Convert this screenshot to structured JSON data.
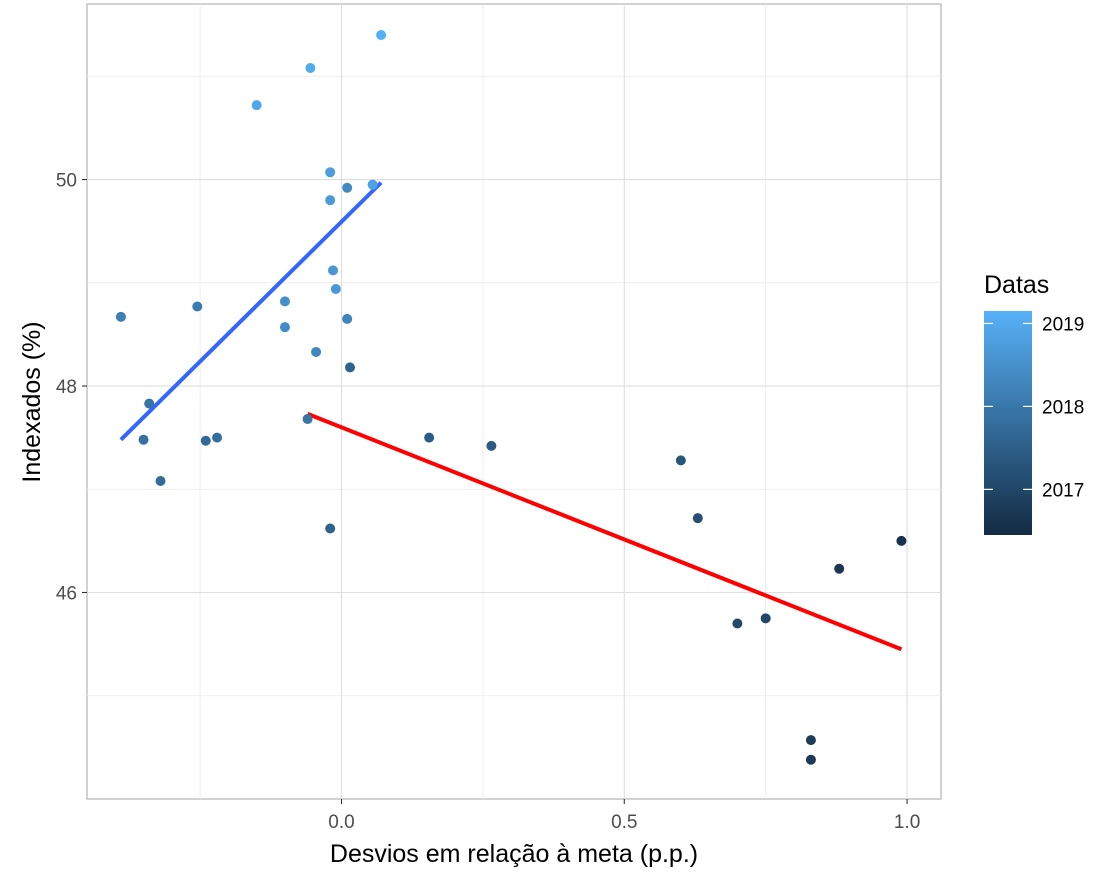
{
  "chart_data": {
    "type": "scatter",
    "xlabel": "Desvios em relação à meta (p.p.)",
    "ylabel": "Indexados (%)",
    "xlim": [
      -0.45,
      1.06
    ],
    "ylim": [
      44.0,
      51.7
    ],
    "x_ticks": [
      0.0,
      0.5,
      1.0
    ],
    "x_tick_labels": [
      "0.0",
      "0.5",
      "1.0"
    ],
    "y_ticks": [
      46,
      48,
      50
    ],
    "y_tick_labels": [
      "46",
      "48",
      "50"
    ],
    "grid": true,
    "legend": {
      "title": "Datas",
      "type": "colorbar",
      "placement": "right",
      "range": [
        2016.45,
        2019.15
      ],
      "ticks": [
        2017,
        2018,
        2019
      ],
      "tick_labels": [
        "2017",
        "2018",
        "2019"
      ],
      "color_low": "#132b43",
      "color_high": "#56b1f7"
    },
    "points": [
      {
        "x": 0.07,
        "y": 51.4,
        "date": 2019.1
      },
      {
        "x": -0.055,
        "y": 51.08,
        "date": 2019.0
      },
      {
        "x": -0.15,
        "y": 50.72,
        "date": 2018.95
      },
      {
        "x": -0.02,
        "y": 50.07,
        "date": 2018.75
      },
      {
        "x": 0.055,
        "y": 49.95,
        "date": 2018.85
      },
      {
        "x": 0.01,
        "y": 49.92,
        "date": 2018.35
      },
      {
        "x": -0.02,
        "y": 49.8,
        "date": 2018.7
      },
      {
        "x": -0.015,
        "y": 49.12,
        "date": 2018.6
      },
      {
        "x": -0.01,
        "y": 48.94,
        "date": 2018.65
      },
      {
        "x": -0.1,
        "y": 48.82,
        "date": 2018.45
      },
      {
        "x": -0.255,
        "y": 48.77,
        "date": 2018.05
      },
      {
        "x": -0.39,
        "y": 48.67,
        "date": 2018.15
      },
      {
        "x": 0.01,
        "y": 48.65,
        "date": 2018.25
      },
      {
        "x": -0.1,
        "y": 48.57,
        "date": 2018.4
      },
      {
        "x": -0.045,
        "y": 48.33,
        "date": 2018.3
      },
      {
        "x": 0.015,
        "y": 48.18,
        "date": 2017.6
      },
      {
        "x": -0.34,
        "y": 47.83,
        "date": 2017.9
      },
      {
        "x": -0.06,
        "y": 47.68,
        "date": 2017.95
      },
      {
        "x": 0.155,
        "y": 47.5,
        "date": 2017.45
      },
      {
        "x": -0.22,
        "y": 47.5,
        "date": 2017.8
      },
      {
        "x": -0.35,
        "y": 47.48,
        "date": 2017.85
      },
      {
        "x": -0.24,
        "y": 47.47,
        "date": 2017.7
      },
      {
        "x": 0.265,
        "y": 47.42,
        "date": 2017.4
      },
      {
        "x": 0.6,
        "y": 47.28,
        "date": 2017.3
      },
      {
        "x": -0.32,
        "y": 47.08,
        "date": 2017.75
      },
      {
        "x": 0.63,
        "y": 46.72,
        "date": 2017.2
      },
      {
        "x": -0.02,
        "y": 46.62,
        "date": 2017.55
      },
      {
        "x": 0.99,
        "y": 46.5,
        "date": 2016.6
      },
      {
        "x": 0.88,
        "y": 46.23,
        "date": 2016.7
      },
      {
        "x": 0.75,
        "y": 45.75,
        "date": 2017.0
      },
      {
        "x": 0.7,
        "y": 45.7,
        "date": 2017.05
      },
      {
        "x": 0.83,
        "y": 44.57,
        "date": 2016.8
      },
      {
        "x": 0.83,
        "y": 44.38,
        "date": 2016.75
      }
    ],
    "lines": [
      {
        "color": "#3366ff",
        "x": [
          -0.39,
          0.07
        ],
        "y": [
          47.48,
          49.97
        ]
      },
      {
        "color": "#ff0000",
        "x": [
          -0.06,
          0.99
        ],
        "y": [
          47.73,
          45.45
        ]
      }
    ]
  }
}
